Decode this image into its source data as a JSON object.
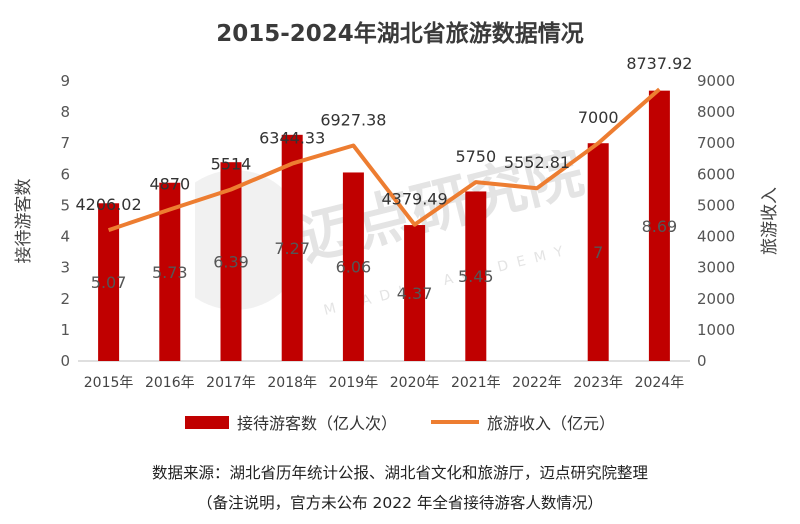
{
  "title": "2015-2024年湖北省旅游数据情况",
  "colors": {
    "bar": "#c00000",
    "line": "#ed7d31"
  },
  "watermark": {
    "cn": "迈点研究院",
    "en": "MEADIN ACADEMY"
  },
  "footnotes": {
    "source": "数据来源：湖北省历年统计公报、湖北省文化和旅游厅，迈点研究院整理",
    "note": "（备注说明，官方未公布 2022 年全省接待游客人数情况）"
  },
  "chart_data": {
    "type": "bar",
    "categories": [
      "2015年",
      "2016年",
      "2017年",
      "2018年",
      "2019年",
      "2020年",
      "2021年",
      "2022年",
      "2023年",
      "2024年"
    ],
    "series": [
      {
        "name": "接待游客数（亿人次）",
        "type": "bar",
        "axis": "left",
        "values": [
          5.07,
          5.73,
          6.39,
          7.27,
          6.06,
          4.37,
          5.45,
          null,
          7,
          8.69
        ],
        "labels": [
          "5.07",
          "5.73",
          "6.39",
          "7.27",
          "6.06",
          "4.37",
          "5.45",
          "",
          "7",
          "8.69"
        ]
      },
      {
        "name": "旅游收入（亿元）",
        "type": "line",
        "axis": "right",
        "values": [
          4206.02,
          4870,
          5514,
          6344.33,
          6927.38,
          4379.49,
          5750,
          5552.81,
          7000,
          8737.92
        ],
        "labels": [
          "4206.02",
          "4870",
          "5514",
          "6344.33",
          "6927.38",
          "4379.49",
          "5750",
          "5552.81",
          "7000",
          "8737.92"
        ]
      }
    ],
    "ylabel": "接待游客数",
    "y2label": "旅游收入",
    "ylim": [
      0,
      9
    ],
    "y2lim": [
      0,
      9000
    ],
    "yticks": [
      "0",
      "1",
      "2",
      "3",
      "4",
      "5",
      "6",
      "7",
      "8",
      "9"
    ],
    "y2ticks": [
      "0",
      "1000",
      "2000",
      "3000",
      "4000",
      "5000",
      "6000",
      "7000",
      "8000",
      "9000"
    ],
    "grid": false,
    "legend": "bottom"
  }
}
